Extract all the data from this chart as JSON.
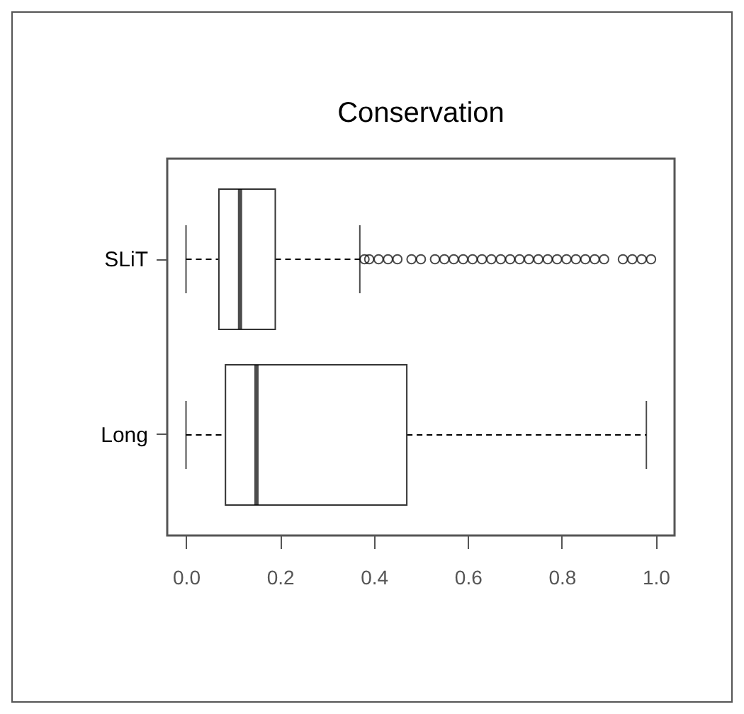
{
  "chart_data": {
    "type": "box",
    "title": "Conservation",
    "orientation": "horizontal",
    "categories": [
      "SLiT",
      "Long"
    ],
    "boxes": [
      {
        "low": 0,
        "q1": 0.07,
        "median": 0.115,
        "q3": 0.19,
        "high": 0.37,
        "outliers": [
          0.38,
          0.39,
          0.41,
          0.43,
          0.45,
          0.48,
          0.5,
          0.53,
          0.55,
          0.57,
          0.59,
          0.61,
          0.63,
          0.65,
          0.67,
          0.69,
          0.71,
          0.73,
          0.75,
          0.77,
          0.79,
          0.81,
          0.83,
          0.85,
          0.87,
          0.89,
          0.93,
          0.95,
          0.97,
          0.99
        ]
      },
      {
        "low": 0,
        "q1": 0.084,
        "median": 0.15,
        "q3": 0.47,
        "high": 0.98
      }
    ],
    "xlim": [
      -0.04,
      1.04
    ],
    "xticks": [
      {
        "value": 0,
        "label": "0.0"
      },
      0.2,
      0.4,
      0.6,
      0.8,
      {
        "value": 1,
        "label": "1.0"
      }
    ]
  }
}
